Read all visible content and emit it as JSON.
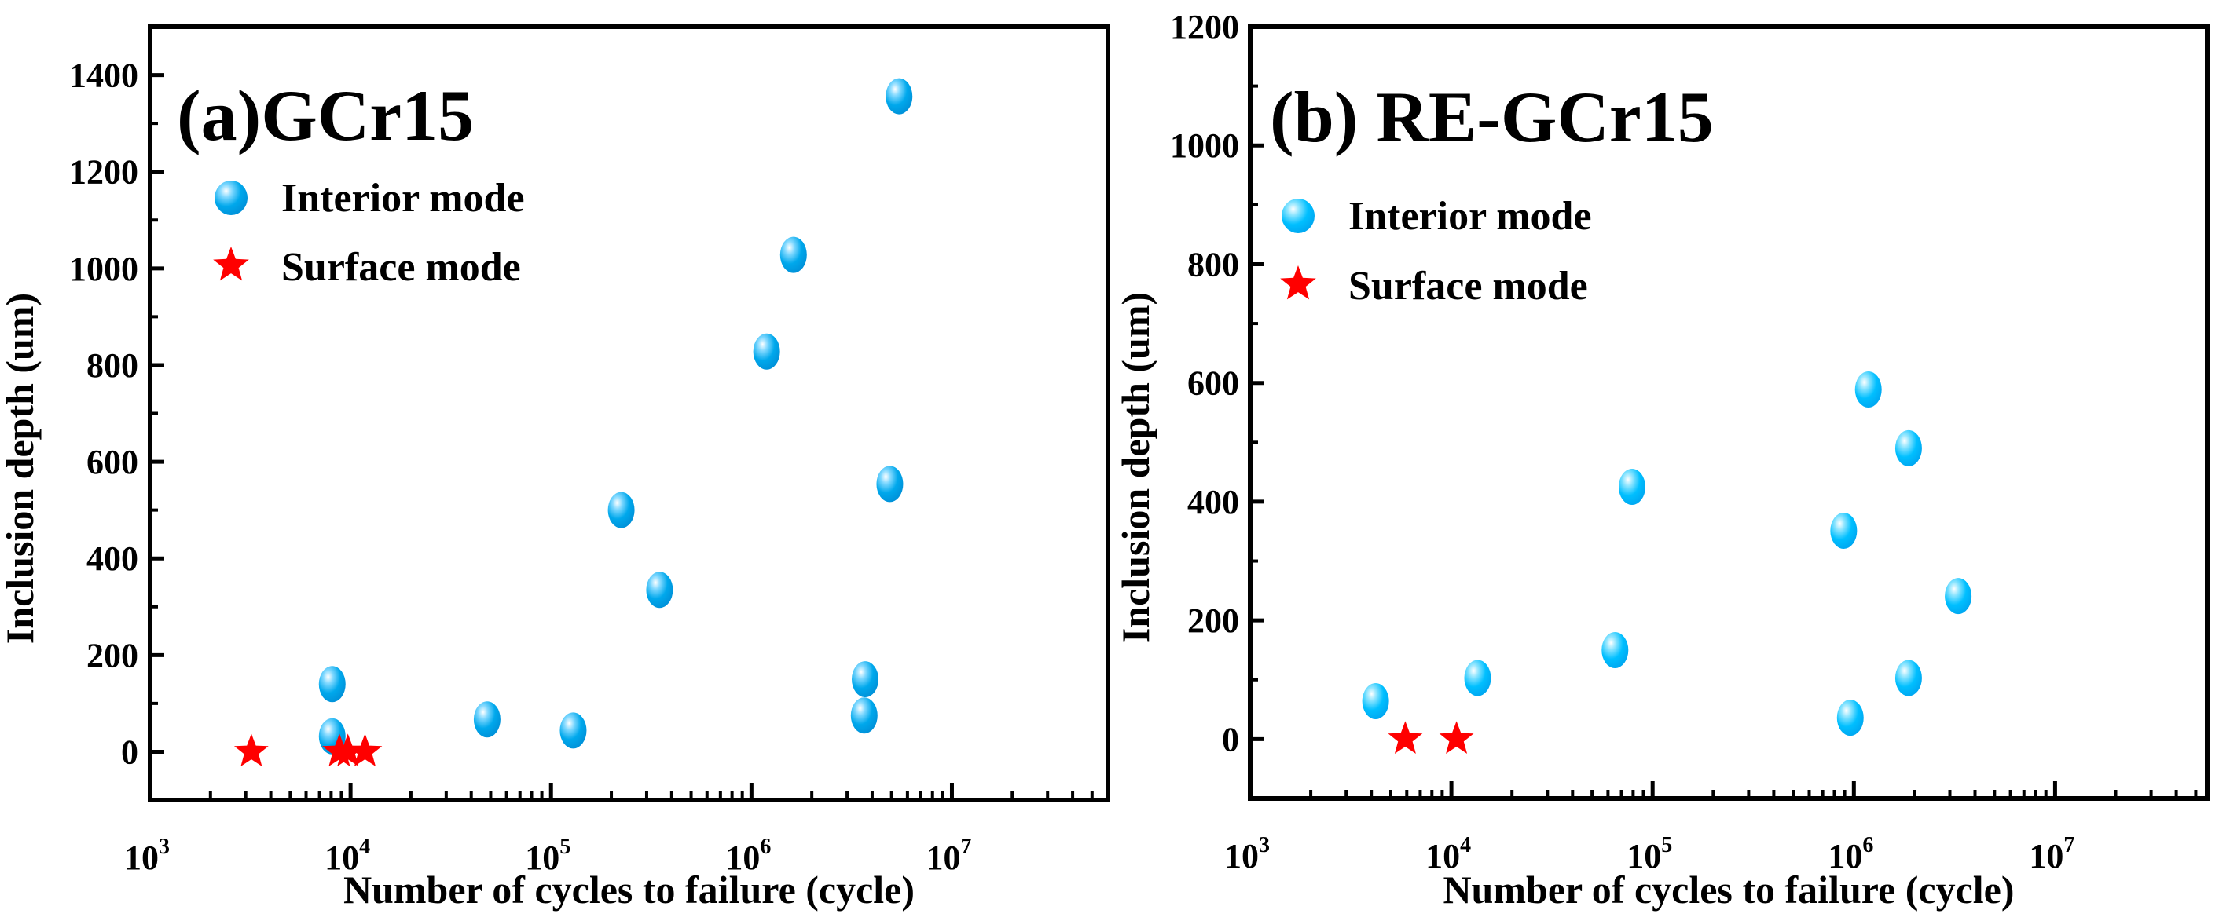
{
  "chart_data": [
    {
      "type": "scatter",
      "title": "(a)GCr15",
      "xlabel": "Number of cycles to failure (cycle)",
      "ylabel": "Inclusion depth (um)",
      "xscale": "log",
      "xlim": [
        1000,
        60000000
      ],
      "ylim": [
        -100,
        1500
      ],
      "xticks": [
        1000,
        10000,
        100000,
        1000000,
        10000000
      ],
      "xtick_labels": [
        {
          "base": "10",
          "exp": "3"
        },
        {
          "base": "10",
          "exp": "4"
        },
        {
          "base": "10",
          "exp": "5"
        },
        {
          "base": "10",
          "exp": "6"
        },
        {
          "base": "10",
          "exp": "7"
        }
      ],
      "yticks": [
        0,
        200,
        400,
        600,
        800,
        1000,
        1200,
        1400
      ],
      "ytick_labels": [
        "0",
        "200",
        "400",
        "600",
        "800",
        "1000",
        "1200",
        "1400"
      ],
      "grid": false,
      "legend_position": "top-left",
      "series": [
        {
          "name": "Interior mode",
          "marker": "sphere",
          "color": "#00a8ec",
          "x": [
            8100,
            8100,
            48000,
            129000,
            224000,
            348000,
            1190000,
            1620000,
            3650000,
            3690000,
            4900000,
            5450000
          ],
          "y": [
            140,
            32,
            67,
            44,
            500,
            335,
            828,
            1028,
            75,
            150,
            554,
            1356
          ]
        },
        {
          "name": "Surface mode",
          "marker": "star",
          "color": "#ff0000",
          "x": [
            3200,
            8800,
            9700,
            11800
          ],
          "y": [
            0,
            0,
            0,
            0
          ]
        }
      ]
    },
    {
      "type": "scatter",
      "title": "(b) RE-GCr15",
      "xlabel": "Number of cycles to failure (cycle)",
      "ylabel": "Inclusion depth (um)",
      "xscale": "log",
      "xlim": [
        1000,
        57000000
      ],
      "ylim": [
        -100,
        1200
      ],
      "xticks": [
        1000,
        10000,
        100000,
        1000000,
        10000000
      ],
      "xtick_labels": [
        {
          "base": "10",
          "exp": "3"
        },
        {
          "base": "10",
          "exp": "4"
        },
        {
          "base": "10",
          "exp": "5"
        },
        {
          "base": "10",
          "exp": "6"
        },
        {
          "base": "10",
          "exp": "7"
        }
      ],
      "yticks": [
        0,
        200,
        400,
        600,
        800,
        1000,
        1200
      ],
      "ytick_labels": [
        "0",
        "200",
        "400",
        "600",
        "800",
        "1000",
        "1200"
      ],
      "grid": false,
      "legend_position": "top-left",
      "series": [
        {
          "name": "Interior mode",
          "marker": "sphere",
          "color": "#00bfff",
          "x": [
            4200,
            13500,
            65000,
            79000,
            890000,
            960000,
            1180000,
            1870000,
            1870000,
            3300000
          ],
          "y": [
            64,
            103,
            150,
            425,
            351,
            36,
            589,
            490,
            103,
            241
          ]
        },
        {
          "name": "Surface mode",
          "marker": "star",
          "color": "#ff0000",
          "x": [
            5900,
            10600
          ],
          "y": [
            0,
            0
          ]
        }
      ]
    }
  ]
}
